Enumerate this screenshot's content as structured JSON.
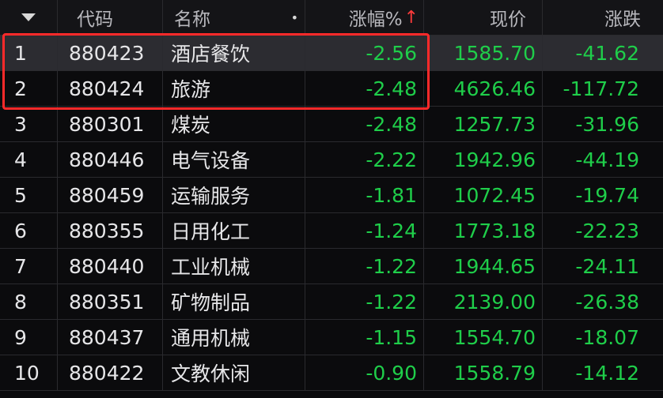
{
  "header": {
    "code": "代码",
    "name": "名称",
    "change_pct": "涨幅%",
    "price": "现价",
    "change": "涨跌",
    "dot": "•",
    "sort_arrow": "↑"
  },
  "rows": [
    {
      "index": "1",
      "code": "880423",
      "name": "酒店餐饮",
      "change_pct": "-2.56",
      "price": "1585.70",
      "change": "-41.62"
    },
    {
      "index": "2",
      "code": "880424",
      "name": "旅游",
      "change_pct": "-2.48",
      "price": "4626.46",
      "change": "-117.72"
    },
    {
      "index": "3",
      "code": "880301",
      "name": "煤炭",
      "change_pct": "-2.48",
      "price": "1257.73",
      "change": "-31.96"
    },
    {
      "index": "4",
      "code": "880446",
      "name": "电气设备",
      "change_pct": "-2.22",
      "price": "1942.96",
      "change": "-44.19"
    },
    {
      "index": "5",
      "code": "880459",
      "name": "运输服务",
      "change_pct": "-1.81",
      "price": "1072.45",
      "change": "-19.74"
    },
    {
      "index": "6",
      "code": "880355",
      "name": "日用化工",
      "change_pct": "-1.24",
      "price": "1773.18",
      "change": "-22.23"
    },
    {
      "index": "7",
      "code": "880440",
      "name": "工业机械",
      "change_pct": "-1.22",
      "price": "1944.65",
      "change": "-24.11"
    },
    {
      "index": "8",
      "code": "880351",
      "name": "矿物制品",
      "change_pct": "-1.22",
      "price": "2139.00",
      "change": "-26.38"
    },
    {
      "index": "9",
      "code": "880437",
      "name": "通用机械",
      "change_pct": "-1.15",
      "price": "1554.70",
      "change": "-18.07"
    },
    {
      "index": "10",
      "code": "880422",
      "name": "文教休闲",
      "change_pct": "-0.90",
      "price": "1558.79",
      "change": "-14.12"
    }
  ],
  "colors": {
    "negative": "#1fce4a",
    "highlight_border": "#ff2a2a",
    "sort_arrow": "#ff3b3b"
  }
}
